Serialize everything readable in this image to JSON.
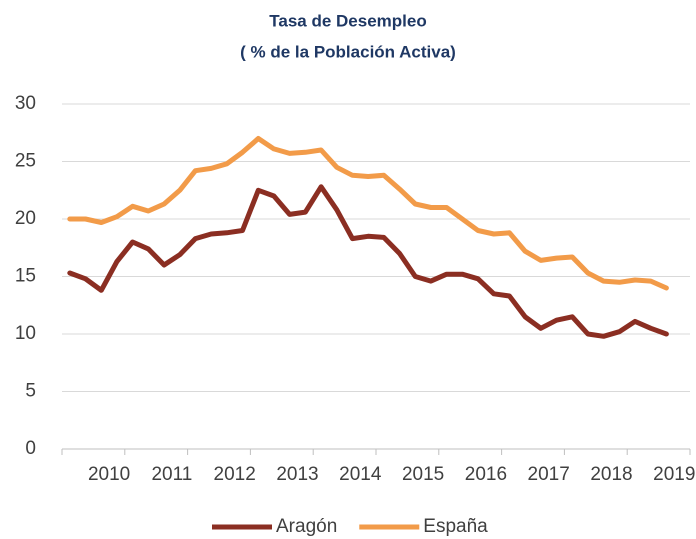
{
  "chart_data": {
    "type": "line",
    "title": "Tasa de Desempleo",
    "subtitle": "( % de la Población Activa)",
    "categories": [
      null,
      null,
      "2010",
      null,
      null,
      null,
      "2011",
      null,
      null,
      null,
      "2012",
      null,
      null,
      null,
      "2013",
      null,
      null,
      null,
      "2014",
      null,
      null,
      null,
      "2015",
      null,
      null,
      null,
      "2016",
      null,
      null,
      null,
      "2017",
      null,
      null,
      null,
      "2018",
      null,
      null,
      null,
      "2019"
    ],
    "series": [
      {
        "name": "Aragón",
        "color": "#8b2e22",
        "values": [
          15.3,
          14.8,
          13.8,
          16.3,
          18.0,
          17.4,
          16.0,
          16.9,
          18.3,
          18.7,
          18.8,
          19.0,
          22.5,
          22.0,
          20.4,
          20.6,
          22.8,
          20.8,
          18.3,
          18.5,
          18.4,
          17.0,
          15.0,
          14.6,
          15.2,
          15.2,
          14.8,
          13.5,
          13.3,
          11.5,
          10.5,
          11.2,
          11.5,
          10.0,
          9.8,
          10.2,
          11.1,
          10.5,
          10.0
        ]
      },
      {
        "name": "España",
        "color": "#f29b49",
        "values": [
          20.0,
          20.0,
          19.7,
          20.2,
          21.1,
          20.7,
          21.3,
          22.5,
          24.2,
          24.4,
          24.8,
          25.8,
          27.0,
          26.1,
          25.7,
          25.8,
          26.0,
          24.5,
          23.8,
          23.7,
          23.8,
          22.6,
          21.3,
          21.0,
          21.0,
          20.0,
          19.0,
          18.7,
          18.8,
          17.2,
          16.4,
          16.6,
          16.7,
          15.3,
          14.6,
          14.5,
          14.7,
          14.6,
          14.0
        ]
      }
    ],
    "ylim": [
      0,
      30
    ],
    "yticks": [
      0,
      5,
      10,
      15,
      20,
      25,
      30
    ],
    "grid": true,
    "legend": "bottom"
  }
}
